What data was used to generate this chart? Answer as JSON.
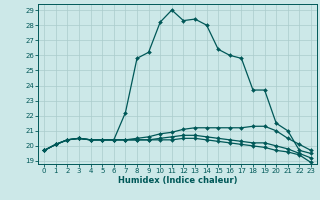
{
  "xlabel": "Humidex (Indice chaleur)",
  "ylabel": "",
  "background_color": "#cce8e8",
  "grid_color": "#aacccc",
  "line_color": "#005858",
  "xlim": [
    -0.5,
    23.5
  ],
  "ylim": [
    18.8,
    29.4
  ],
  "yticks": [
    19,
    20,
    21,
    22,
    23,
    24,
    25,
    26,
    27,
    28,
    29
  ],
  "xticks": [
    0,
    1,
    2,
    3,
    4,
    5,
    6,
    7,
    8,
    9,
    10,
    11,
    12,
    13,
    14,
    15,
    16,
    17,
    18,
    19,
    20,
    21,
    22,
    23
  ],
  "lines": [
    {
      "x": [
        0,
        1,
        2,
        3,
        4,
        5,
        6,
        7,
        8,
        9,
        10,
        11,
        12,
        13,
        14,
        15,
        16,
        17,
        18,
        19,
        20,
        21,
        22,
        23
      ],
      "y": [
        19.7,
        20.1,
        20.4,
        20.5,
        20.4,
        20.4,
        20.4,
        22.2,
        25.8,
        26.2,
        28.2,
        29.0,
        28.3,
        28.4,
        28.0,
        26.4,
        26.0,
        25.8,
        23.7,
        23.7,
        21.5,
        21.0,
        19.7,
        19.5
      ]
    },
    {
      "x": [
        0,
        1,
        2,
        3,
        4,
        5,
        6,
        7,
        8,
        9,
        10,
        11,
        12,
        13,
        14,
        15,
        16,
        17,
        18,
        19,
        20,
        21,
        22,
        23
      ],
      "y": [
        19.7,
        20.1,
        20.4,
        20.5,
        20.4,
        20.4,
        20.4,
        20.4,
        20.5,
        20.6,
        20.8,
        20.9,
        21.1,
        21.2,
        21.2,
        21.2,
        21.2,
        21.2,
        21.3,
        21.3,
        21.0,
        20.5,
        20.1,
        19.7
      ]
    },
    {
      "x": [
        0,
        1,
        2,
        3,
        4,
        5,
        6,
        7,
        8,
        9,
        10,
        11,
        12,
        13,
        14,
        15,
        16,
        17,
        18,
        19,
        20,
        21,
        22,
        23
      ],
      "y": [
        19.7,
        20.1,
        20.4,
        20.5,
        20.4,
        20.4,
        20.4,
        20.4,
        20.4,
        20.4,
        20.5,
        20.6,
        20.7,
        20.7,
        20.6,
        20.5,
        20.4,
        20.3,
        20.2,
        20.2,
        20.0,
        19.8,
        19.5,
        19.2
      ]
    },
    {
      "x": [
        0,
        1,
        2,
        3,
        4,
        5,
        6,
        7,
        8,
        9,
        10,
        11,
        12,
        13,
        14,
        15,
        16,
        17,
        18,
        19,
        20,
        21,
        22,
        23
      ],
      "y": [
        19.7,
        20.1,
        20.4,
        20.5,
        20.4,
        20.4,
        20.4,
        20.4,
        20.4,
        20.4,
        20.4,
        20.4,
        20.5,
        20.5,
        20.4,
        20.3,
        20.2,
        20.1,
        20.0,
        19.9,
        19.7,
        19.6,
        19.4,
        18.9
      ]
    }
  ]
}
